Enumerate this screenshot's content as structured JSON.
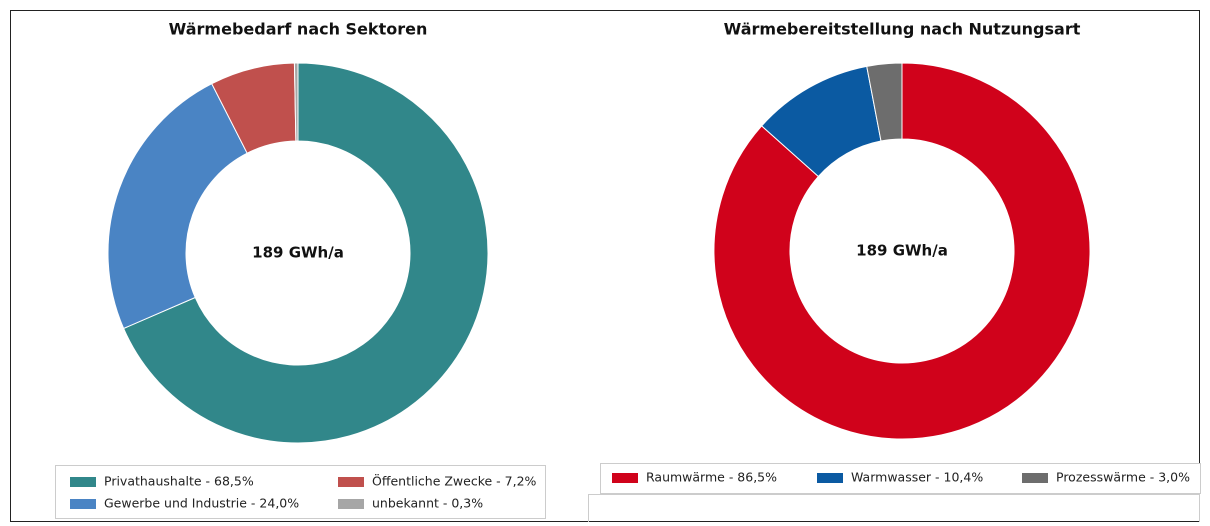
{
  "chart_data": [
    {
      "type": "donut",
      "title": "Wärmebedarf nach Sektoren",
      "center_label": "189 GWh/a",
      "categories": [
        "Privathaushalte - 68,5%",
        "Gewerbe und Industrie - 24,0%",
        "Öffentliche Zwecke - 7,2%",
        "unbekannt - 0,3%"
      ],
      "values": [
        68.5,
        24.0,
        7.2,
        0.3
      ],
      "colors": [
        "#31878a",
        "#4a84c4",
        "#c0504d",
        "#a6a6a6"
      ]
    },
    {
      "type": "donut",
      "title": "Wärmebereitstellung nach Nutzungsart",
      "center_label": "189 GWh/a",
      "categories": [
        "Raumwärme - 86,5%",
        "Warmwasser - 10,4%",
        "Prozesswärme - 3,0%"
      ],
      "values": [
        86.5,
        10.4,
        3.0
      ],
      "colors": [
        "#d0021b",
        "#0b5aa2",
        "#6d6d6d"
      ]
    }
  ]
}
